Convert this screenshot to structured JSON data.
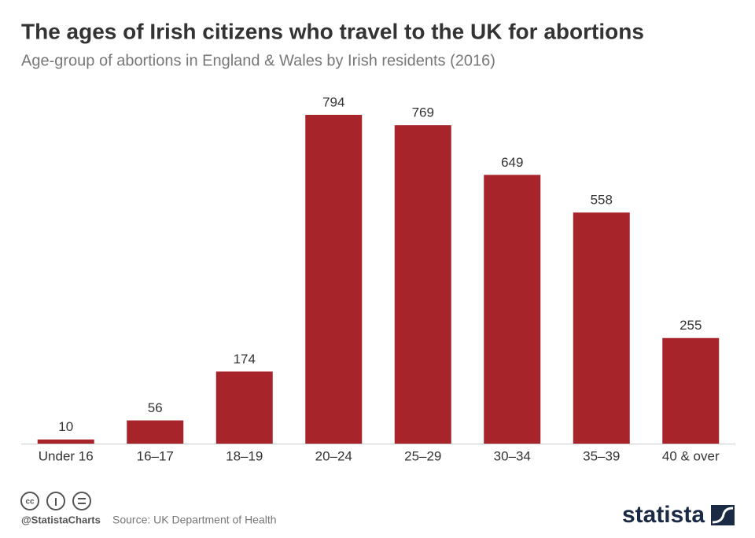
{
  "chart_data": {
    "type": "bar",
    "title": "The ages of Irish citizens who travel to the UK for abortions",
    "subtitle": "Age-group of abortions in England & Wales by Irish residents (2016)",
    "categories": [
      "Under 16",
      "16–17",
      "18–19",
      "20–24",
      "25–29",
      "30–34",
      "35–39",
      "40 & over"
    ],
    "values": [
      10,
      56,
      174,
      794,
      769,
      649,
      558,
      255
    ],
    "color": "#a8242b",
    "credit": "@StatistaCharts",
    "source": "Source: UK Department of Health",
    "brand": "statista"
  }
}
